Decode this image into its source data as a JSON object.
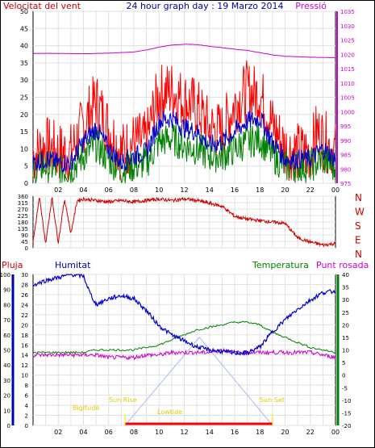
{
  "header": {
    "left_title": "Velocitat del vent",
    "center_title": "24 hour graph day : 19 Marzo 2014",
    "right_title": "Pressió"
  },
  "x_tick_labels": [
    "02",
    "04",
    "06",
    "08",
    "10",
    "12",
    "14",
    "16",
    "18",
    "20",
    "22",
    "00"
  ],
  "colors": {
    "wind_avg": "#0000cc",
    "wind_gust": "#ff0000",
    "wind_other": "#008000",
    "pressure": "#cc00cc",
    "direction": "#cc0000",
    "humidity": "#0000cc",
    "temperature": "#008000",
    "dewpoint": "#cc00cc",
    "sun": "#ffdd00",
    "axis_left_red": "#cc0000",
    "axis_right_magenta": "#cc00cc",
    "axis_left_blue": "#0000aa",
    "axis_right_green": "#008000"
  },
  "panel3_labels": {
    "rain": "Pluja",
    "humidity": "Humitat",
    "temperature": "Temperatura",
    "dewpoint": "Punt rosada"
  },
  "sun_labels": {
    "twilight_am": "Bigitude",
    "sunrise": "Sun Rise",
    "solar_noon": "Lowtide",
    "sunset": "Sun Set"
  },
  "direction_labels": [
    "N",
    "W",
    "S",
    "E",
    "N"
  ],
  "chart_data": [
    {
      "type": "line",
      "panel": "wind_pressure",
      "title": "Velocitat del vent",
      "x_range_hours": [
        0,
        24
      ],
      "ylim_left": [
        0,
        50
      ],
      "yticks_left": [
        0,
        5,
        10,
        15,
        20,
        25,
        30,
        35,
        40,
        45,
        50
      ],
      "ylim_right": [
        975,
        1035
      ],
      "yticks_right": [
        975,
        980,
        985,
        990,
        995,
        1000,
        1005,
        1010,
        1015,
        1020,
        1025,
        1030,
        1035
      ],
      "series": [
        {
          "name": "Velocitat del vent",
          "color": "#ff0000",
          "x": [
            0,
            1,
            2,
            3,
            4,
            5,
            6,
            7,
            8,
            9,
            9.5,
            10,
            11,
            12,
            13,
            14,
            15,
            16,
            17,
            17.5,
            18,
            19,
            20,
            21,
            22,
            22.5,
            23,
            24
          ],
          "values": [
            8,
            11,
            9,
            9,
            17,
            24,
            16,
            9,
            12,
            12,
            20,
            26,
            27,
            24,
            22,
            16,
            15,
            23,
            27,
            26,
            26,
            17,
            10,
            9,
            9,
            15,
            13,
            9
          ]
        },
        {
          "color": "#0000cc",
          "x": [
            0,
            1,
            2,
            3,
            4,
            5,
            6,
            7,
            8,
            9,
            10,
            11,
            12,
            13,
            14,
            15,
            16,
            17,
            18,
            19,
            20,
            21,
            22,
            23,
            24
          ],
          "values": [
            6,
            7,
            6,
            6,
            12,
            16,
            10,
            6,
            8,
            9,
            18,
            19,
            16,
            15,
            11,
            12,
            15,
            18,
            19,
            12,
            7,
            7,
            7,
            10,
            7
          ]
        },
        {
          "color": "#008000",
          "x": [
            0,
            1,
            2,
            3,
            4,
            5,
            6,
            7,
            8,
            9,
            10,
            11,
            12,
            13,
            14,
            15,
            16,
            17,
            18,
            19,
            20,
            21,
            22,
            23,
            24
          ],
          "values": [
            4,
            5,
            4,
            4,
            8,
            11,
            7,
            4,
            5,
            6,
            12,
            13,
            11,
            10,
            8,
            8,
            10,
            12,
            13,
            8,
            5,
            5,
            5,
            7,
            4
          ]
        },
        {
          "name": "Pressió",
          "axis": "right",
          "color": "#cc00cc",
          "x": [
            0,
            2,
            4,
            6,
            8,
            9,
            10,
            11,
            12,
            13,
            14,
            15,
            16,
            17,
            18,
            19,
            20,
            22,
            24
          ],
          "values": [
            1020.3,
            1020.3,
            1020.2,
            1020.4,
            1020.8,
            1021.5,
            1022.5,
            1023.2,
            1023.5,
            1023.4,
            1022.8,
            1022.3,
            1021.8,
            1021.3,
            1020.6,
            1019.8,
            1019.3,
            1019.0,
            1018.8
          ]
        }
      ]
    },
    {
      "type": "scatter",
      "panel": "wind_direction",
      "x_range_hours": [
        0,
        24
      ],
      "ylim": [
        0,
        360
      ],
      "yticks": [
        0,
        45,
        90,
        135,
        180,
        225,
        270,
        315,
        360
      ],
      "series": [
        {
          "color": "#cc0000",
          "x": [
            0,
            0.5,
            1,
            1.5,
            2,
            2.5,
            3,
            3.5,
            4,
            5,
            6,
            7,
            8,
            9,
            10,
            11,
            12,
            13,
            14,
            15,
            16,
            17,
            18,
            19,
            20,
            21,
            22,
            23,
            24
          ],
          "values": [
            40,
            350,
            30,
            350,
            40,
            340,
            100,
            330,
            340,
            330,
            320,
            330,
            320,
            330,
            340,
            330,
            340,
            330,
            310,
            290,
            220,
            200,
            190,
            180,
            170,
            70,
            40,
            20,
            30
          ]
        }
      ]
    },
    {
      "type": "line",
      "panel": "humidity_temperature",
      "x_range_hours": [
        0,
        24
      ],
      "ylim_left_humidity": [
        0,
        100
      ],
      "yticks_left_humidity": [
        0,
        10,
        20,
        30,
        40,
        50,
        60,
        70,
        80,
        90,
        100
      ],
      "ylim_left_rain": [
        0,
        30
      ],
      "yticks_left_rain": [
        0,
        2,
        4,
        6,
        8,
        10,
        12,
        14,
        16,
        18,
        20,
        22,
        24,
        26,
        28,
        30
      ],
      "ylim_right": [
        -20,
        40
      ],
      "yticks_right": [
        -20,
        -15,
        -10,
        -5,
        0,
        5,
        10,
        15,
        20,
        25,
        30,
        35,
        40
      ],
      "series": [
        {
          "name": "Humitat",
          "color": "#0000cc",
          "x": [
            0,
            1,
            2,
            3,
            4,
            4.5,
            5,
            6,
            7,
            8,
            9,
            10,
            11,
            12,
            13,
            14,
            15,
            16,
            17,
            18,
            19,
            20,
            21,
            22,
            23,
            24
          ],
          "values": [
            93,
            96,
            98,
            100,
            99,
            88,
            80,
            84,
            86,
            84,
            76,
            66,
            60,
            56,
            52,
            50,
            49,
            48,
            48,
            52,
            62,
            70,
            77,
            83,
            88,
            89
          ]
        },
        {
          "name": "Temperatura",
          "color": "#008000",
          "x": [
            0,
            1,
            2,
            3,
            4,
            5,
            6,
            7,
            8,
            9,
            10,
            11,
            12,
            13,
            14,
            15,
            16,
            17,
            18,
            19,
            20,
            21,
            22,
            23,
            24
          ],
          "values": [
            9,
            9,
            9,
            9,
            9,
            10,
            10,
            10,
            10,
            11,
            12,
            14,
            16,
            18,
            19,
            20,
            21,
            21,
            20,
            17,
            15,
            13,
            11,
            10,
            9
          ]
        },
        {
          "name": "Punt rosada",
          "color": "#cc00cc",
          "x": [
            0,
            1,
            2,
            3,
            4,
            5,
            6,
            7,
            8,
            9,
            10,
            11,
            12,
            13,
            14,
            15,
            16,
            17,
            18,
            19,
            20,
            21,
            22,
            23,
            24
          ],
          "values": [
            8,
            8,
            8,
            8,
            8,
            8,
            7,
            7,
            7,
            8,
            8,
            9,
            9,
            9,
            9,
            10,
            9,
            9,
            9,
            9,
            9,
            9,
            9,
            8,
            7
          ]
        },
        {
          "color": "#aabbee",
          "x": [
            7.3,
            13.2,
            19.0
          ],
          "values": [
            -20,
            15,
            -20
          ]
        }
      ],
      "sun_events_hours": {
        "sunrise": 7.3,
        "sunset": 19.0,
        "solar_noon": 13.2
      },
      "rain_total": 0
    }
  ]
}
